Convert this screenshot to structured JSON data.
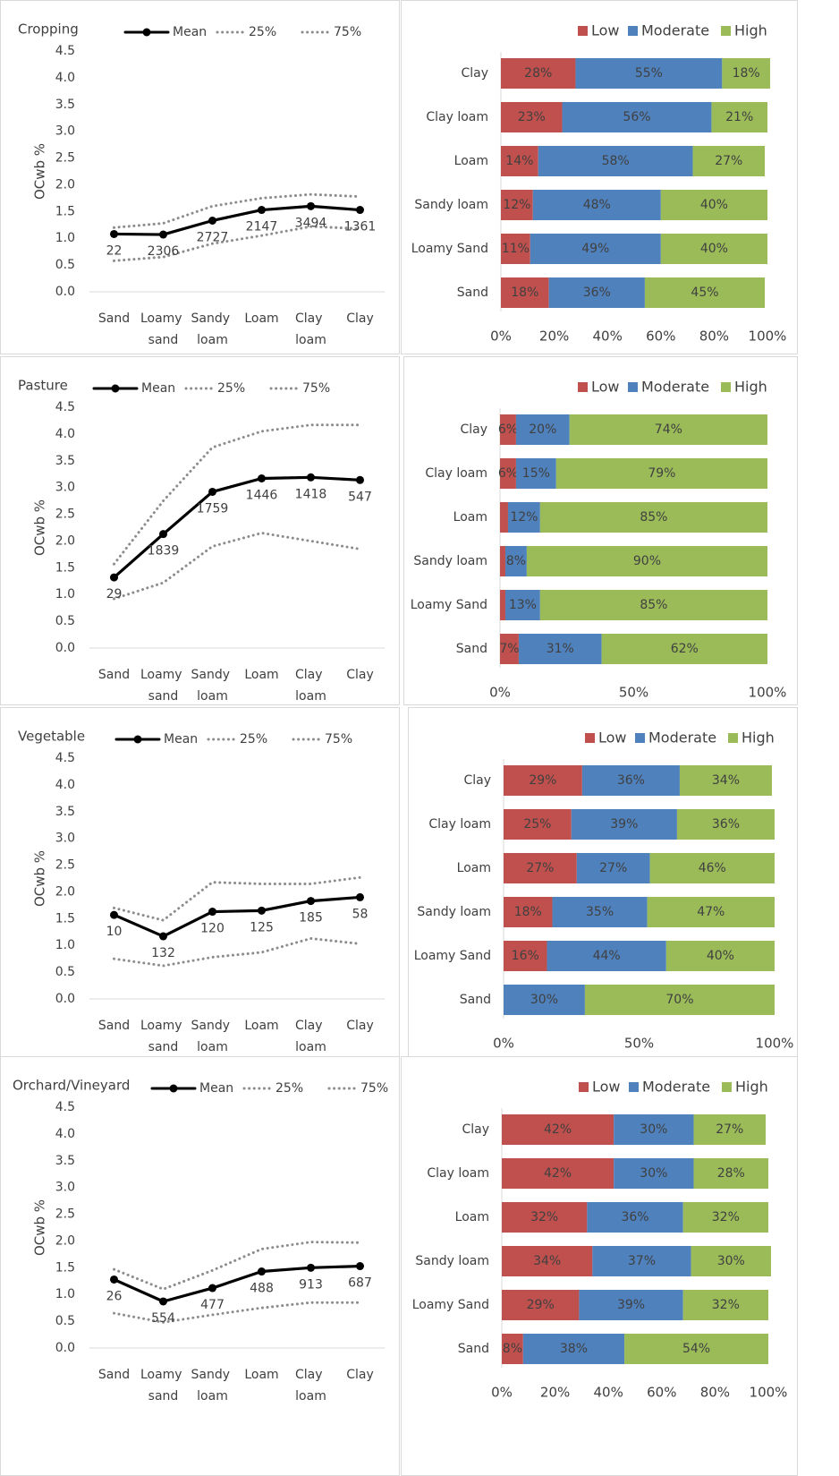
{
  "chart_data": [
    {
      "type": "line",
      "title": "Cropping",
      "y_label": "OCwb %",
      "categories": [
        "Sand",
        "Loamy sand",
        "Sandy loam",
        "Loam",
        "Clay loam",
        "Clay"
      ],
      "series": [
        {
          "name": "Mean",
          "color": "#000000",
          "style": "solid",
          "markers": true,
          "values": [
            1.08,
            1.07,
            1.33,
            1.53,
            1.6,
            1.53
          ]
        },
        {
          "name": "25%",
          "color": "#8c8c8c",
          "style": "dotted",
          "markers": false,
          "values": [
            0.58,
            0.65,
            0.9,
            1.05,
            1.22,
            1.18
          ]
        },
        {
          "name": "75%",
          "color": "#8c8c8c",
          "style": "dotted",
          "markers": false,
          "values": [
            1.2,
            1.28,
            1.6,
            1.75,
            1.82,
            1.78
          ]
        }
      ],
      "counts": [
        22,
        2306,
        2727,
        2147,
        3494,
        1361
      ],
      "ylim": [
        0,
        4.5
      ],
      "yticks": [
        {
          "value": 0,
          "label": "0.0"
        },
        0.5,
        {
          "value": 1,
          "label": "1.0"
        },
        1.5,
        {
          "value": 2,
          "label": "2.0"
        },
        2.5,
        {
          "value": 3,
          "label": "3.0"
        },
        3.5,
        {
          "value": 4,
          "label": "4.0"
        },
        4.5
      ],
      "legend": "top"
    },
    {
      "type": "hbar_stacked",
      "categories": [
        "Clay",
        "Clay loam",
        "Loam",
        "Sandy loam",
        "Loamy Sand",
        "Sand"
      ],
      "series": [
        {
          "name": "Low",
          "color": "#c0504d",
          "values": [
            28,
            23,
            14,
            12,
            11,
            18
          ],
          "value_labels": [
            "28%",
            "23%",
            "14%",
            "12%",
            "11%",
            "18%"
          ]
        },
        {
          "name": "Moderate",
          "color": "#4f81bd",
          "values": [
            55,
            56,
            58,
            48,
            49,
            36
          ],
          "value_labels": [
            "55%",
            "56%",
            "58%",
            "48%",
            "49%",
            "36%"
          ]
        },
        {
          "name": "High",
          "color": "#9bbb59",
          "values": [
            18,
            21,
            27,
            40,
            40,
            45
          ],
          "value_labels": [
            "18%",
            "21%",
            "27%",
            "40%",
            "40%",
            "45%"
          ]
        }
      ],
      "xlim": [
        0,
        100
      ],
      "xticks": [
        {
          "value": 0,
          "label": "0%"
        },
        {
          "value": 20,
          "label": "20%"
        },
        {
          "value": 40,
          "label": "40%"
        },
        {
          "value": 60,
          "label": "60%"
        },
        {
          "value": 80,
          "label": "80%"
        },
        {
          "value": 100,
          "label": "100%"
        }
      ],
      "legend": "top"
    },
    {
      "type": "line",
      "title": "Pasture",
      "y_label": "OCwb %",
      "categories": [
        "Sand",
        "Loamy sand",
        "Sandy loam",
        "Loam",
        "Clay loam",
        "Clay"
      ],
      "series": [
        {
          "name": "Mean",
          "color": "#000000",
          "style": "solid",
          "markers": true,
          "values": [
            1.32,
            2.13,
            2.92,
            3.17,
            3.19,
            3.14
          ]
        },
        {
          "name": "25%",
          "color": "#8c8c8c",
          "style": "dotted",
          "markers": false,
          "values": [
            0.92,
            1.22,
            1.9,
            2.15,
            2.0,
            1.85
          ]
        },
        {
          "name": "75%",
          "color": "#8c8c8c",
          "style": "dotted",
          "markers": false,
          "values": [
            1.57,
            2.75,
            3.75,
            4.05,
            4.17,
            4.17
          ]
        }
      ],
      "counts": [
        29,
        1839,
        1759,
        1446,
        1418,
        547
      ],
      "ylim": [
        0,
        4.5
      ],
      "yticks": [
        {
          "value": 0,
          "label": "0.0"
        },
        0.5,
        {
          "value": 1,
          "label": "1.0"
        },
        1.5,
        {
          "value": 2,
          "label": "2.0"
        },
        2.5,
        {
          "value": 3,
          "label": "3.0"
        },
        3.5,
        {
          "value": 4,
          "label": "4.0"
        },
        4.5
      ],
      "legend": "top"
    },
    {
      "type": "hbar_stacked",
      "categories": [
        "Clay",
        "Clay loam",
        "Loam",
        "Sandy loam",
        "Loamy Sand",
        "Sand"
      ],
      "series": [
        {
          "name": "Low",
          "color": "#c0504d",
          "values": [
            6,
            6,
            3,
            2,
            2,
            7
          ],
          "value_labels": [
            "6%",
            "6%",
            null,
            null,
            null,
            "7%"
          ]
        },
        {
          "name": "Moderate",
          "color": "#4f81bd",
          "values": [
            20,
            15,
            12,
            8,
            13,
            31
          ],
          "value_labels": [
            "20%",
            "15%",
            "12%",
            "8%",
            "13%",
            "31%"
          ]
        },
        {
          "name": "High",
          "color": "#9bbb59",
          "values": [
            74,
            79,
            85,
            90,
            85,
            62
          ],
          "value_labels": [
            "74%",
            "79%",
            "85%",
            "90%",
            "85%",
            "62%"
          ]
        }
      ],
      "xlim": [
        0,
        100
      ],
      "xticks": [
        {
          "value": 0,
          "label": "0%"
        },
        {
          "value": 50,
          "label": "50%"
        },
        {
          "value": 100,
          "label": "100%"
        }
      ],
      "legend": "top"
    },
    {
      "type": "line",
      "title": "Vegetable",
      "y_label": "OCwb %",
      "categories": [
        "Sand",
        "Loamy sand",
        "Sandy loam",
        "Loam",
        "Clay loam",
        "Clay"
      ],
      "series": [
        {
          "name": "Mean",
          "color": "#000000",
          "style": "solid",
          "markers": true,
          "values": [
            1.57,
            1.17,
            1.63,
            1.65,
            1.83,
            1.9
          ]
        },
        {
          "name": "25%",
          "color": "#8c8c8c",
          "style": "dotted",
          "markers": false,
          "values": [
            0.75,
            0.62,
            0.78,
            0.87,
            1.13,
            1.03
          ]
        },
        {
          "name": "75%",
          "color": "#8c8c8c",
          "style": "dotted",
          "markers": false,
          "values": [
            1.7,
            1.47,
            2.18,
            2.15,
            2.15,
            2.27
          ]
        }
      ],
      "counts": [
        10,
        132,
        120,
        125,
        185,
        58
      ],
      "ylim": [
        0,
        4.5
      ],
      "yticks": [
        {
          "value": 0,
          "label": "0.0"
        },
        0.5,
        {
          "value": 1,
          "label": "1.0"
        },
        1.5,
        {
          "value": 2,
          "label": "2.0"
        },
        2.5,
        {
          "value": 3,
          "label": "3.0"
        },
        3.5,
        {
          "value": 4,
          "label": "4.0"
        },
        4.5
      ],
      "legend": "top"
    },
    {
      "type": "hbar_stacked",
      "categories": [
        "Clay",
        "Clay loam",
        "Loam",
        "Sandy loam",
        "Loamy Sand",
        "Sand"
      ],
      "series": [
        {
          "name": "Low",
          "color": "#c0504d",
          "values": [
            29,
            25,
            27,
            18,
            16,
            0
          ],
          "value_labels": [
            "29%",
            "25%",
            "27%",
            "18%",
            "16%",
            null
          ]
        },
        {
          "name": "Moderate",
          "color": "#4f81bd",
          "values": [
            36,
            39,
            27,
            35,
            44,
            30
          ],
          "value_labels": [
            "36%",
            "39%",
            "27%",
            "35%",
            "44%",
            "30%"
          ]
        },
        {
          "name": "High",
          "color": "#9bbb59",
          "values": [
            34,
            36,
            46,
            47,
            40,
            70
          ],
          "value_labels": [
            "34%",
            "36%",
            "46%",
            "47%",
            "40%",
            "70%"
          ]
        }
      ],
      "xlim": [
        0,
        100
      ],
      "xticks": [
        {
          "value": 0,
          "label": "0%"
        },
        {
          "value": 50,
          "label": "50%"
        },
        {
          "value": 100,
          "label": "100%"
        }
      ],
      "legend": "top"
    },
    {
      "type": "line",
      "title": "Orchard/Vineyard",
      "y_label": "OCwb %",
      "categories": [
        "Sand",
        "Loamy sand",
        "Sandy loam",
        "Loam",
        "Clay loam",
        "Clay"
      ],
      "series": [
        {
          "name": "Mean",
          "color": "#000000",
          "style": "solid",
          "markers": true,
          "values": [
            1.28,
            0.87,
            1.12,
            1.43,
            1.5,
            1.53
          ]
        },
        {
          "name": "25%",
          "color": "#8c8c8c",
          "style": "dotted",
          "markers": false,
          "values": [
            0.65,
            0.48,
            0.62,
            0.75,
            0.85,
            0.85
          ]
        },
        {
          "name": "75%",
          "color": "#8c8c8c",
          "style": "dotted",
          "markers": false,
          "values": [
            1.47,
            1.1,
            1.45,
            1.85,
            1.98,
            1.97
          ]
        }
      ],
      "counts": [
        26,
        554,
        477,
        488,
        913,
        687
      ],
      "ylim": [
        0,
        4.5
      ],
      "yticks": [
        {
          "value": 0,
          "label": "0.0"
        },
        0.5,
        {
          "value": 1,
          "label": "1.0"
        },
        1.5,
        {
          "value": 2,
          "label": "2.0"
        },
        2.5,
        {
          "value": 3,
          "label": "3.0"
        },
        3.5,
        {
          "value": 4,
          "label": "4.0"
        },
        4.5
      ],
      "legend": "top"
    },
    {
      "type": "hbar_stacked",
      "categories": [
        "Clay",
        "Clay loam",
        "Loam",
        "Sandy loam",
        "Loamy Sand",
        "Sand"
      ],
      "series": [
        {
          "name": "Low",
          "color": "#c0504d",
          "values": [
            42,
            42,
            32,
            34,
            29,
            8
          ],
          "value_labels": [
            "42%",
            "42%",
            "32%",
            "34%",
            "29%",
            "8%"
          ]
        },
        {
          "name": "Moderate",
          "color": "#4f81bd",
          "values": [
            30,
            30,
            36,
            37,
            39,
            38
          ],
          "value_labels": [
            "30%",
            "30%",
            "36%",
            "37%",
            "39%",
            "38%"
          ]
        },
        {
          "name": "High",
          "color": "#9bbb59",
          "values": [
            27,
            28,
            32,
            30,
            32,
            54
          ],
          "value_labels": [
            "27%",
            "28%",
            "32%",
            "30%",
            "32%",
            "54%"
          ]
        }
      ],
      "xlim": [
        0,
        100
      ],
      "xticks": [
        {
          "value": 0,
          "label": "0%"
        },
        {
          "value": 20,
          "label": "20%"
        },
        {
          "value": 40,
          "label": "40%"
        },
        {
          "value": 60,
          "label": "60%"
        },
        {
          "value": 80,
          "label": "80%"
        },
        {
          "value": 100,
          "label": "100%"
        }
      ],
      "legend": "top"
    }
  ]
}
